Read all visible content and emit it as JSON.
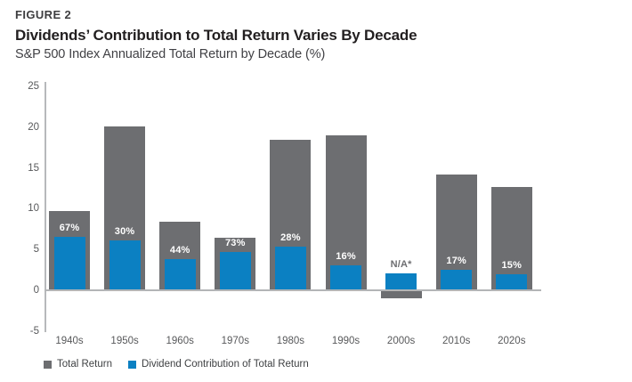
{
  "header": {
    "figure_label": "FIGURE 2",
    "title": "Dividends’ Contribution to Total Return Varies By Decade",
    "subtitle": "S&P 500 Index Annualized Total Return by Decade (%)"
  },
  "chart_data": {
    "type": "bar",
    "title": "Dividends’ Contribution to Total Return Varies By Decade",
    "subtitle": "S&P 500 Index Annualized Total Return by Decade (%)",
    "categories": [
      "1940s",
      "1950s",
      "1960s",
      "1970s",
      "1980s",
      "1990s",
      "2000s",
      "2010s",
      "2020s"
    ],
    "series": [
      {
        "name": "Total Return",
        "color": "#6d6e71",
        "values": [
          9.6,
          20.0,
          8.3,
          6.3,
          18.3,
          18.9,
          -1.0,
          14.1,
          12.6
        ]
      },
      {
        "name": "Dividend Contribution of Total Return",
        "color": "#0b80c2",
        "values": [
          6.4,
          6.0,
          3.7,
          4.6,
          5.2,
          3.0,
          2.0,
          2.4,
          1.9
        ]
      }
    ],
    "bar_labels": [
      "67%",
      "30%",
      "44%",
      "73%",
      "28%",
      "16%",
      "N/A*",
      "17%",
      "15%"
    ],
    "xlabel": "",
    "ylabel": "",
    "ylim": [
      -5,
      25
    ],
    "yticks": [
      25,
      20,
      15,
      10,
      5,
      0,
      -5
    ],
    "grid": false,
    "legend_position": "bottom"
  },
  "legend": {
    "items": [
      {
        "label": "Total Return",
        "color": "#6d6e71"
      },
      {
        "label": "Dividend Contribution of Total Return",
        "color": "#0b80c2"
      }
    ]
  },
  "colors": {
    "total_return_bar": "#6d6e71",
    "dividend_bar": "#0b80c2",
    "bar_label_text": "#ffffff",
    "na_label_text": "#6d6e71",
    "axis_line": "#b7b9bb",
    "tick_text": "#58595b",
    "title_text": "#221f20"
  }
}
